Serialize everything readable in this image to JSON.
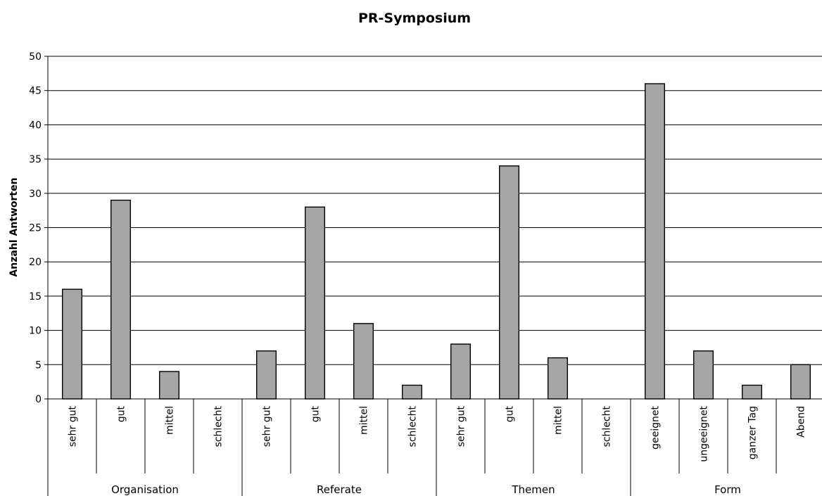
{
  "chart_data": {
    "type": "bar",
    "title": "PR-Symposium",
    "ylabel": "Anzahl Antworten",
    "xlabel": "",
    "ylim": [
      0,
      50
    ],
    "ytick_step": 5,
    "grid": true,
    "bar_color": "#a6a6a6",
    "groups": [
      {
        "name": "Organisation",
        "categories": [
          "sehr gut",
          "gut",
          "mittel",
          "schlecht"
        ],
        "values": [
          16,
          29,
          4,
          0
        ]
      },
      {
        "name": "Referate",
        "categories": [
          "sehr gut",
          "gut",
          "mittel",
          "schlecht"
        ],
        "values": [
          7,
          28,
          11,
          2
        ]
      },
      {
        "name": "Themen",
        "categories": [
          "sehr gut",
          "gut",
          "mittel",
          "schlecht"
        ],
        "values": [
          8,
          34,
          6,
          0
        ]
      },
      {
        "name": "Form",
        "categories": [
          "geeignet",
          "ungeeignet",
          "ganzer Tag",
          "Abend"
        ],
        "values": [
          46,
          7,
          2,
          5
        ]
      }
    ]
  }
}
